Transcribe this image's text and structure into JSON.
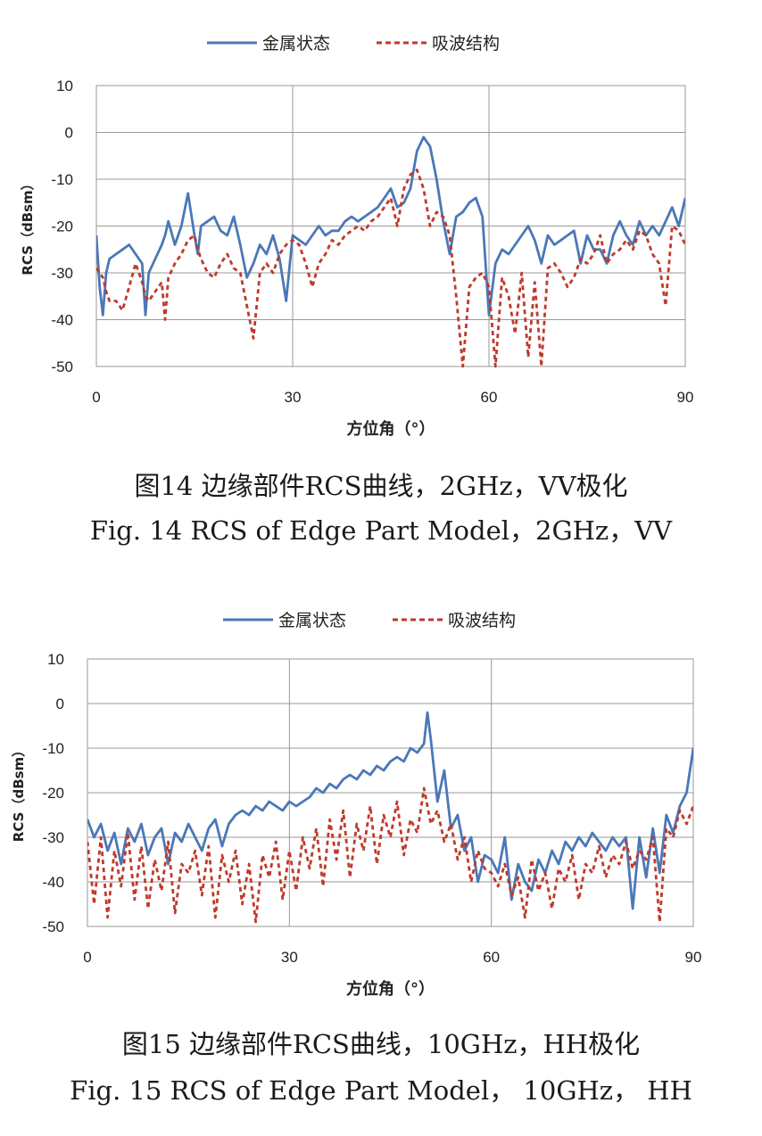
{
  "chart_data": [
    {
      "type": "line",
      "title": "",
      "xlabel": "方位角（°）",
      "ylabel": "RCS（dBsm）",
      "xlim": [
        0,
        90
      ],
      "ylim": [
        -50,
        10
      ],
      "xticks": [
        "0",
        "30",
        "60",
        "90"
      ],
      "yticks": [
        "10",
        "0",
        "-10",
        "-20",
        "-30",
        "-40",
        "-50"
      ],
      "grid": true,
      "legend_position": "top-center",
      "caption_cn": "图14  边缘部件RCS曲线，2GHz，VV极化",
      "caption_en": "Fig. 14 RCS of Edge Part Model，2GHz，VV",
      "series": [
        {
          "name": "金属状态",
          "style": "solid",
          "color": "#4a78b7",
          "x": [
            0,
            0.5,
            1,
            1.5,
            2,
            3,
            4,
            5,
            6,
            7,
            7.5,
            8,
            9,
            10,
            10.5,
            11,
            12,
            13,
            14,
            15,
            15.5,
            16,
            17,
            18,
            19,
            20,
            21,
            22,
            23,
            24,
            25,
            26,
            27,
            28,
            29,
            30,
            31,
            32,
            33,
            34,
            35,
            36,
            37,
            38,
            39,
            40,
            41,
            42,
            43,
            44,
            45,
            46,
            47,
            48,
            49,
            50,
            51,
            52,
            53,
            54,
            55,
            56,
            57,
            58,
            59,
            60,
            61,
            62,
            63,
            64,
            65,
            66,
            67,
            68,
            69,
            70,
            71,
            72,
            73,
            74,
            75,
            76,
            77,
            78,
            79,
            80,
            81,
            82,
            83,
            84,
            85,
            86,
            87,
            88,
            89,
            90
          ],
          "values": [
            -22,
            -33,
            -39,
            -30,
            -27,
            -26,
            -25,
            -24,
            -26,
            -28,
            -39,
            -30,
            -27,
            -24,
            -22,
            -19,
            -24,
            -20,
            -13,
            -22,
            -26,
            -20,
            -19,
            -18,
            -21,
            -22,
            -18,
            -24,
            -31,
            -28,
            -24,
            -26,
            -22,
            -27,
            -36,
            -22,
            -23,
            -24,
            -22,
            -20,
            -22,
            -21,
            -21,
            -19,
            -18,
            -19,
            -18,
            -17,
            -16,
            -14,
            -12,
            -16,
            -15,
            -12,
            -4,
            -1,
            -3,
            -10,
            -19,
            -26,
            -18,
            -17,
            -15,
            -14,
            -18,
            -39,
            -28,
            -25,
            -26,
            -24,
            -22,
            -20,
            -23,
            -28,
            -22,
            -24,
            -23,
            -22,
            -21,
            -28,
            -22,
            -25,
            -25,
            -28,
            -22,
            -19,
            -22,
            -24,
            -19,
            -22,
            -20,
            -22,
            -19,
            -16,
            -20,
            -14
          ]
        },
        {
          "name": "吸波结构",
          "style": "dashed",
          "color": "#c0392b",
          "x": [
            0,
            0.5,
            1,
            1.5,
            2,
            3,
            4,
            5,
            6,
            7,
            7.5,
            8,
            9,
            10,
            10.5,
            11,
            12,
            13,
            14,
            15,
            15.5,
            16,
            17,
            18,
            19,
            20,
            21,
            22,
            23,
            24,
            25,
            26,
            27,
            28,
            29,
            30,
            31,
            32,
            33,
            34,
            35,
            36,
            37,
            38,
            39,
            40,
            41,
            42,
            43,
            44,
            45,
            46,
            47,
            48,
            49,
            50,
            51,
            52,
            53,
            54,
            55,
            56,
            57,
            58,
            59,
            60,
            61,
            62,
            63,
            64,
            65,
            66,
            67,
            68,
            69,
            70,
            71,
            72,
            73,
            74,
            75,
            76,
            77,
            78,
            79,
            80,
            81,
            82,
            83,
            84,
            85,
            86,
            87,
            88,
            89,
            90
          ],
          "values": [
            -29,
            -30,
            -31,
            -34,
            -36,
            -36,
            -38,
            -33,
            -28,
            -32,
            -35,
            -36,
            -34,
            -32,
            -40,
            -31,
            -28,
            -26,
            -23,
            -22,
            -25,
            -27,
            -30,
            -31,
            -28,
            -26,
            -29,
            -30,
            -37,
            -44,
            -30,
            -28,
            -30,
            -26,
            -24,
            -23,
            -24,
            -28,
            -33,
            -28,
            -26,
            -23,
            -24,
            -22,
            -21,
            -20,
            -21,
            -19,
            -18,
            -16,
            -14,
            -20,
            -12,
            -9,
            -8,
            -12,
            -20,
            -17,
            -18,
            -22,
            -35,
            -50,
            -33,
            -31,
            -30,
            -33,
            -50,
            -31,
            -35,
            -43,
            -30,
            -48,
            -32,
            -50,
            -29,
            -28,
            -30,
            -33,
            -31,
            -27,
            -28,
            -26,
            -22,
            -28,
            -26,
            -25,
            -23,
            -25,
            -21,
            -22,
            -26,
            -28,
            -37,
            -20,
            -21,
            -24
          ]
        }
      ]
    },
    {
      "type": "line",
      "title": "",
      "xlabel": "方位角（°）",
      "ylabel": "RCS（dBsm）",
      "xlim": [
        0,
        90
      ],
      "ylim": [
        -50,
        10
      ],
      "xticks": [
        "0",
        "30",
        "60",
        "90"
      ],
      "yticks": [
        "10",
        "0",
        "-10",
        "-20",
        "-30",
        "-40",
        "-50"
      ],
      "grid": true,
      "legend_position": "top-center",
      "caption_cn": "图15  边缘部件RCS曲线，10GHz，HH极化",
      "caption_en": "Fig. 15 RCS of Edge Part Model， 10GHz， HH",
      "series": [
        {
          "name": "金属状态",
          "style": "solid",
          "color": "#4a78b7",
          "x": [
            0,
            1,
            2,
            3,
            4,
            5,
            6,
            7,
            8,
            9,
            10,
            11,
            12,
            13,
            14,
            15,
            16,
            17,
            18,
            19,
            20,
            21,
            22,
            23,
            24,
            25,
            26,
            27,
            28,
            29,
            30,
            31,
            32,
            33,
            34,
            35,
            36,
            37,
            38,
            39,
            40,
            41,
            42,
            43,
            44,
            45,
            46,
            47,
            48,
            49,
            50,
            50.5,
            51,
            52,
            53,
            54,
            55,
            56,
            57,
            58,
            59,
            60,
            61,
            62,
            63,
            64,
            65,
            66,
            67,
            68,
            69,
            70,
            71,
            72,
            73,
            74,
            75,
            76,
            77,
            78,
            79,
            80,
            81,
            82,
            83,
            84,
            85,
            86,
            87,
            88,
            89,
            90
          ],
          "values": [
            -26,
            -30,
            -27,
            -33,
            -29,
            -36,
            -28,
            -31,
            -27,
            -34,
            -30,
            -28,
            -36,
            -29,
            -31,
            -27,
            -30,
            -33,
            -28,
            -26,
            -32,
            -27,
            -25,
            -24,
            -25,
            -23,
            -24,
            -22,
            -23,
            -24,
            -22,
            -23,
            -22,
            -21,
            -19,
            -20,
            -18,
            -19,
            -17,
            -16,
            -17,
            -15,
            -16,
            -14,
            -15,
            -13,
            -12,
            -13,
            -10,
            -11,
            -9,
            -2,
            -8,
            -22,
            -15,
            -28,
            -25,
            -33,
            -30,
            -40,
            -34,
            -35,
            -38,
            -30,
            -44,
            -36,
            -40,
            -42,
            -35,
            -38,
            -33,
            -36,
            -31,
            -33,
            -30,
            -32,
            -29,
            -31,
            -33,
            -30,
            -32,
            -30,
            -46,
            -30,
            -39,
            -28,
            -38,
            -25,
            -29,
            -23,
            -20,
            -10
          ]
        },
        {
          "name": "吸波结构",
          "style": "dashed",
          "color": "#c0392b",
          "x": [
            0,
            1,
            2,
            3,
            4,
            5,
            6,
            7,
            8,
            9,
            10,
            11,
            12,
            13,
            14,
            15,
            16,
            17,
            18,
            19,
            20,
            21,
            22,
            23,
            24,
            25,
            26,
            27,
            28,
            29,
            30,
            31,
            32,
            33,
            34,
            35,
            36,
            37,
            38,
            39,
            40,
            41,
            42,
            43,
            44,
            45,
            46,
            47,
            48,
            49,
            50,
            51,
            52,
            53,
            54,
            55,
            56,
            57,
            58,
            59,
            60,
            61,
            62,
            63,
            64,
            65,
            66,
            67,
            68,
            69,
            70,
            71,
            72,
            73,
            74,
            75,
            76,
            77,
            78,
            79,
            80,
            81,
            82,
            83,
            84,
            85,
            86,
            87,
            88,
            89,
            90
          ],
          "values": [
            -31,
            -45,
            -30,
            -48,
            -33,
            -41,
            -29,
            -44,
            -32,
            -46,
            -35,
            -42,
            -31,
            -47,
            -36,
            -38,
            -33,
            -43,
            -32,
            -48,
            -34,
            -40,
            -33,
            -45,
            -36,
            -49,
            -34,
            -39,
            -31,
            -44,
            -33,
            -42,
            -30,
            -37,
            -28,
            -41,
            -26,
            -35,
            -24,
            -39,
            -27,
            -33,
            -23,
            -36,
            -25,
            -30,
            -22,
            -34,
            -26,
            -29,
            -19,
            -27,
            -24,
            -31,
            -27,
            -35,
            -30,
            -40,
            -33,
            -37,
            -38,
            -41,
            -36,
            -43,
            -39,
            -48,
            -35,
            -42,
            -38,
            -46,
            -37,
            -40,
            -34,
            -44,
            -36,
            -38,
            -32,
            -39,
            -34,
            -36,
            -31,
            -37,
            -33,
            -35,
            -30,
            -49,
            -28,
            -30,
            -24,
            -27,
            -23
          ]
        }
      ]
    }
  ]
}
